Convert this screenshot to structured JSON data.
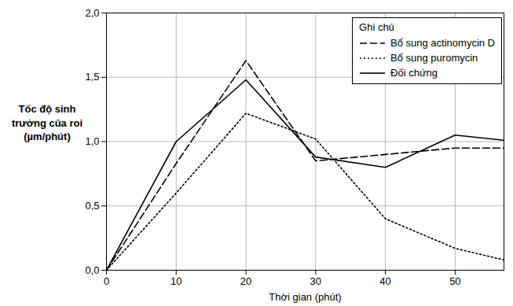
{
  "chart_data": {
    "type": "line",
    "x_label": "Thời gian (phút)",
    "y_label": "Tốc độ sinh trưởng của roi (µm/phút)",
    "legend_title": "Ghi chú",
    "legend": "top-right",
    "grid": true,
    "x": [
      0,
      10,
      20,
      30,
      40,
      50,
      57
    ],
    "series": [
      {
        "name": "Bổ sung actinomycin D",
        "color": "#000000",
        "line_style": "dashed",
        "values": [
          0,
          0.83,
          1.63,
          0.85,
          0.9,
          0.95,
          0.95
        ]
      },
      {
        "name": "Bổ sung puromycin",
        "color": "#000000",
        "line_style": "dotted",
        "values": [
          0,
          0.6,
          1.22,
          1.02,
          0.4,
          0.17,
          0.08
        ]
      },
      {
        "name": "Đối chứng",
        "color": "#000000",
        "line_style": "solid",
        "values": [
          0,
          1.0,
          1.48,
          0.88,
          0.8,
          1.05,
          1.01
        ]
      }
    ],
    "xlim": [
      0,
      57
    ],
    "xticks": [
      0,
      10,
      20,
      30,
      40,
      50
    ],
    "ylim": [
      0,
      2
    ],
    "yticks": [
      {
        "value": 0,
        "label": "0,0"
      },
      {
        "value": 0.5,
        "label": "0,5"
      },
      {
        "value": 1,
        "label": "1,0"
      },
      {
        "value": 1.5,
        "label": "1,5"
      },
      {
        "value": 2,
        "label": "2,0"
      }
    ]
  }
}
